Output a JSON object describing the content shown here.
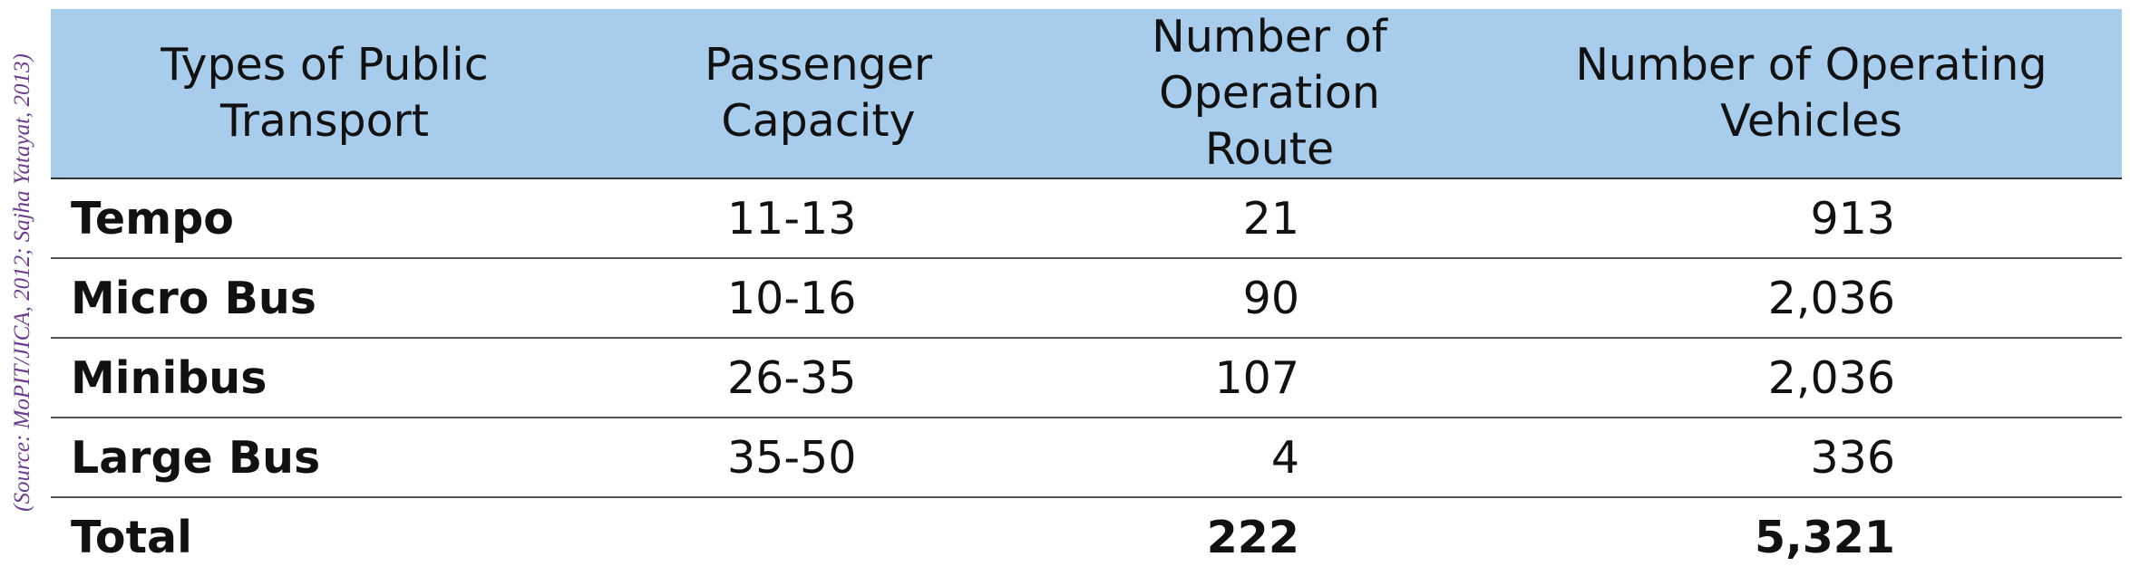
{
  "source_note": "(Source: MoPIT/JICA, 2012; Sajha Yatayat, 2013)",
  "table": {
    "headers": [
      [
        "Types of Public",
        "Transport"
      ],
      [
        "Passenger",
        "Capacity"
      ],
      [
        "Number of Operation",
        "Route"
      ],
      [
        "Number of Operating",
        "Vehicles"
      ]
    ],
    "rows": [
      {
        "type": "Tempo",
        "capacity": "11-13",
        "routes": "21",
        "vehicles": "913"
      },
      {
        "type": "Micro Bus",
        "capacity": "10-16",
        "routes": "90",
        "vehicles": "2,036"
      },
      {
        "type": "Minibus",
        "capacity": "26-35",
        "routes": "107",
        "vehicles": "2,036"
      },
      {
        "type": "Large Bus",
        "capacity": "35-50",
        "routes": "4",
        "vehicles": "336"
      }
    ],
    "total": {
      "label": "Total",
      "capacity": "",
      "routes": "222",
      "vehicles": "5,321"
    }
  },
  "colors": {
    "header_background": "#a8cdec",
    "source_text": "#6b3d8f"
  }
}
